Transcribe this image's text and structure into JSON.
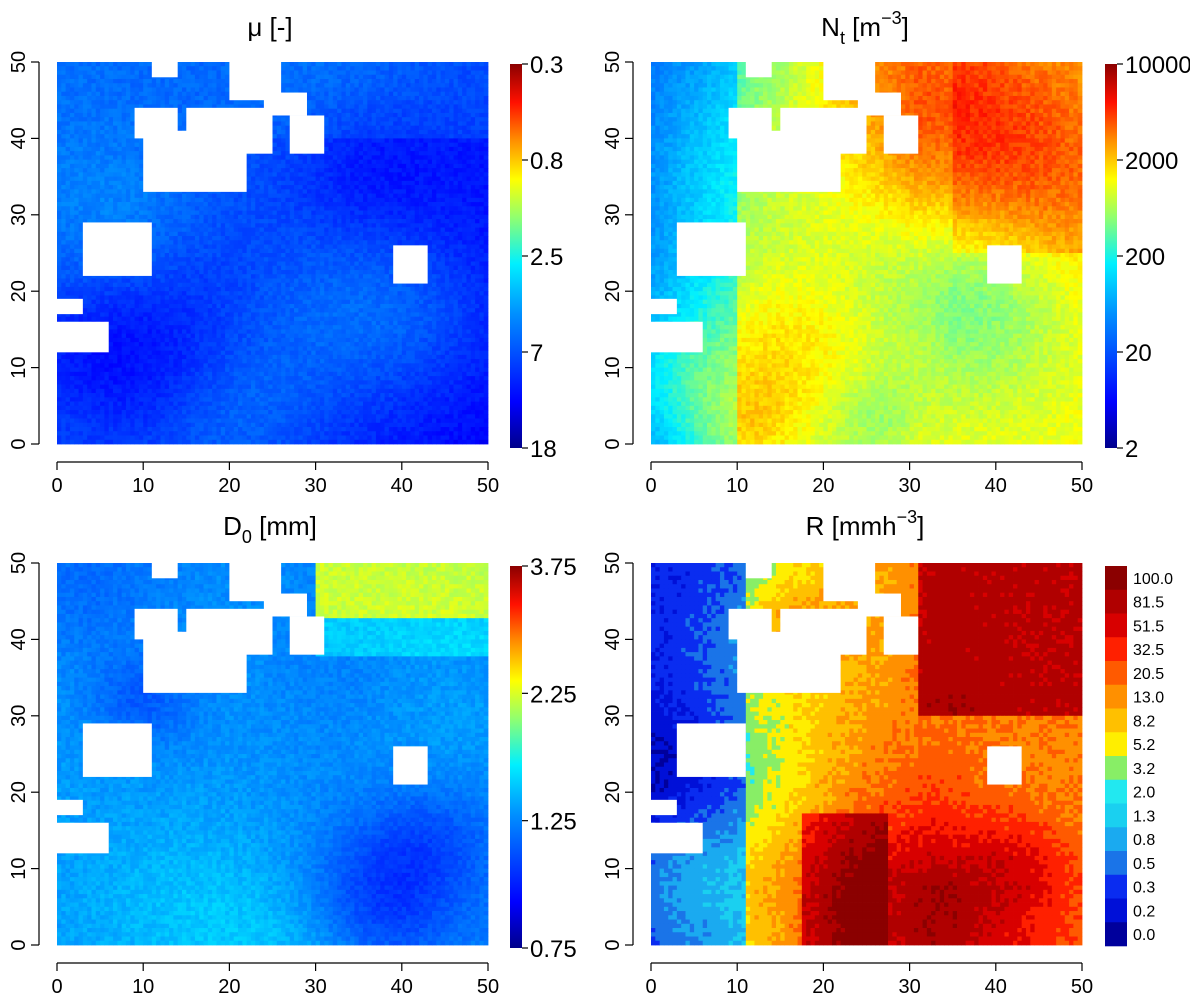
{
  "chart_data": [
    {
      "type": "heatmap",
      "title_main": "μ [-]",
      "title_sub": "",
      "title_sup": "",
      "x_ticks": [
        "0",
        "10",
        "20",
        "30",
        "40",
        "50"
      ],
      "y_ticks": [
        "0",
        "10",
        "20",
        "30",
        "40",
        "50"
      ],
      "xlim": [
        0,
        50
      ],
      "ylim": [
        0,
        50
      ],
      "colorbar": {
        "scale": "log",
        "labels": [
          "0.3",
          "0.8",
          "2.5",
          "7",
          "18"
        ]
      },
      "pattern": "low-mu-north-high-mu-southeast",
      "palette": [
        "#00008b",
        "#0000ff",
        "#0080ff",
        "#00ffff",
        "#80ff80",
        "#ffff00",
        "#ff8000",
        "#ff0000",
        "#8b0000"
      ]
    },
    {
      "type": "heatmap",
      "title_main": "N",
      "title_sub": "t",
      "title_sup": "−3",
      "title_pre": " [m",
      "title_post": "]",
      "x_ticks": [
        "0",
        "10",
        "20",
        "30",
        "40",
        "50"
      ],
      "y_ticks": [
        "0",
        "10",
        "20",
        "30",
        "40",
        "50"
      ],
      "xlim": [
        0,
        50
      ],
      "ylim": [
        0,
        50
      ],
      "colorbar": {
        "scale": "log",
        "labels": [
          "10000",
          "2000",
          "200",
          "20",
          "2"
        ]
      },
      "pattern": "high-nt-east-low-nt-west",
      "palette": [
        "#00008b",
        "#0000ff",
        "#0080ff",
        "#00ffff",
        "#80ff80",
        "#ffff00",
        "#ff8000",
        "#ff0000",
        "#8b0000"
      ]
    },
    {
      "type": "heatmap",
      "title_main": "D",
      "title_sub": "0",
      "title_sup": "",
      "title_pre": " [mm]",
      "title_post": "",
      "x_ticks": [
        "0",
        "10",
        "20",
        "30",
        "40",
        "50"
      ],
      "y_ticks": [
        "0",
        "10",
        "20",
        "30",
        "40",
        "50"
      ],
      "xlim": [
        0,
        50
      ],
      "ylim": [
        0,
        50
      ],
      "colorbar": {
        "scale": "linear",
        "labels": [
          "3.75",
          "2.25",
          "1.25",
          "0.75"
        ]
      },
      "pattern": "d0-mostly-medium-yellow-northeast",
      "palette": [
        "#00008b",
        "#0000ff",
        "#0080ff",
        "#00ffff",
        "#80ff80",
        "#ffff00",
        "#ff8000",
        "#ff0000",
        "#8b0000"
      ]
    },
    {
      "type": "heatmap",
      "title_main": "R [mmh",
      "title_sub": "",
      "title_sup": "−3",
      "title_pre": "",
      "title_post": "]",
      "x_ticks": [
        "0",
        "10",
        "20",
        "30",
        "40",
        "50"
      ],
      "y_ticks": [
        "0",
        "10",
        "20",
        "30",
        "40",
        "50"
      ],
      "xlim": [
        0,
        50
      ],
      "ylim": [
        0,
        50
      ],
      "colorbar": {
        "scale": "classes",
        "labels": [
          "100.0",
          "81.5",
          "51.5",
          "32.5",
          "20.5",
          "13.0",
          "8.2",
          "5.2",
          "3.2",
          "2.0",
          "1.3",
          "0.8",
          "0.5",
          "0.3",
          "0.2",
          "0.0"
        ],
        "colors": [
          "#8b0000",
          "#b00000",
          "#d80000",
          "#ff2000",
          "#ff5a00",
          "#ff9000",
          "#ffc000",
          "#ffee00",
          "#88ee66",
          "#22e8f0",
          "#1ad0f0",
          "#1aaaf0",
          "#1a74e8",
          "#0a2cf0",
          "#0010d8",
          "#00009c"
        ]
      },
      "pattern": "rain-high-northeast-low-west",
      "palette": [
        "#00009c",
        "#0010d8",
        "#0a2cf0",
        "#1a74e8",
        "#1aaaf0",
        "#1ad0f0",
        "#22e8f0",
        "#88ee66",
        "#ffee00",
        "#ffc000",
        "#ff9000",
        "#ff5a00",
        "#ff2000",
        "#d80000",
        "#b00000",
        "#8b0000"
      ]
    }
  ]
}
